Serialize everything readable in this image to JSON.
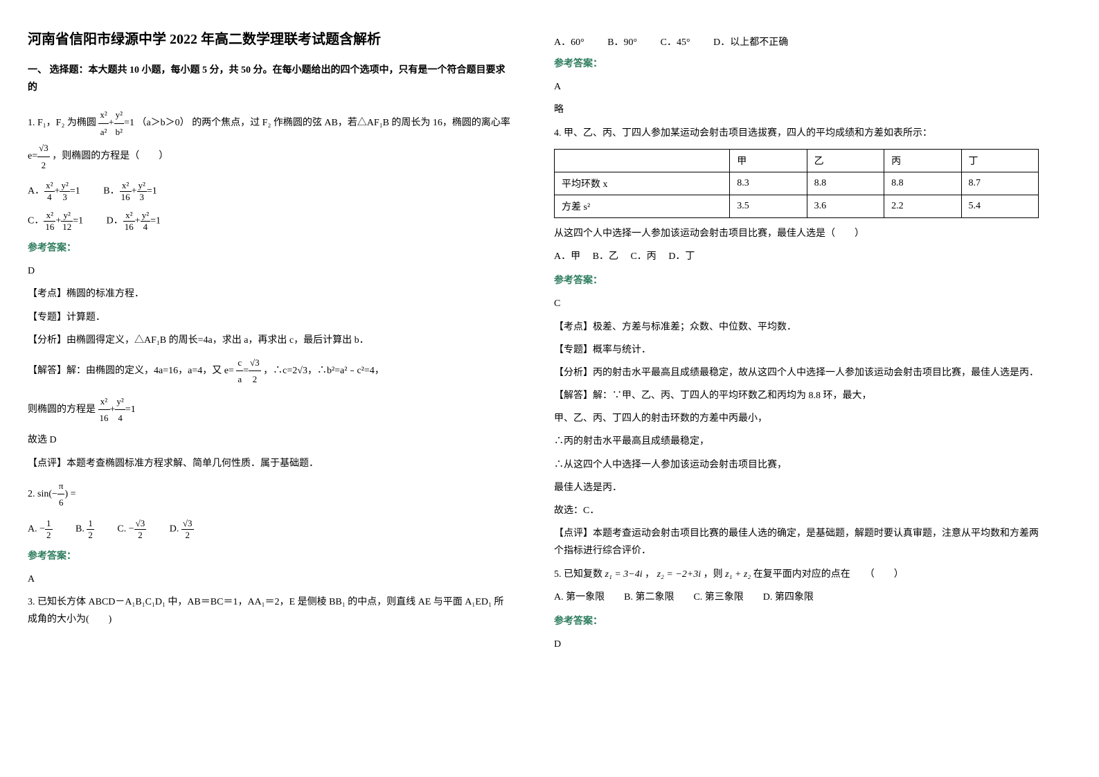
{
  "title": "河南省信阳市绿源中学 2022 年高二数学理联考试题含解析",
  "section1_title": "一、 选择题：本大题共 10 小题，每小题 5 分，共 50 分。在每小题给出的四个选项中，只有是一个符合题目要求的",
  "q1": {
    "stem_prefix": "1. F₁，F₂ 为椭圆",
    "stem_mid": "（a＞b＞0）",
    "stem_suffix": "的两个焦点，过 F₂ 作椭圆的弦 AB，若△AF₁B 的周长为 16，椭圆的离心率",
    "stem_end": "，则椭圆的方程是（　　）",
    "answer_label": "参考答案：",
    "answer": "D",
    "analysis_tag": "【考点】椭圆的标准方程．",
    "topic_tag": "【专题】计算题．",
    "analysis": "【分析】由椭圆得定义，△AF₁B 的周长=4a，求出 a，再求出 c，最后计算出 b．",
    "solve_prefix": "【解答】解：由椭圆的定义，4a=16，a=4，又 e=",
    "solve_mid": "，∴c=2√3，∴b²=a²﹣c²=4，",
    "solve_suffix": "则椭圆的方程是",
    "solve_answer": "故选 D",
    "comment": "【点评】本题考查椭圆标准方程求解、简单几何性质．属于基础题．"
  },
  "q2": {
    "stem": "2.",
    "answer_label": "参考答案：",
    "answer": "A"
  },
  "q3": {
    "stem": "3. 已知长方体 ABCD－A₁B₁C₁D₁ 中，AB＝BC＝1，AA₁＝2，E 是侧棱 BB₁ 的中点，则直线 AE 与平面 A₁ED₁ 所成角的大小为(　　)",
    "optA": "A．60°",
    "optB": "B．90°",
    "optC": "C．45°",
    "optD": "D．以上都不正确",
    "answer_label": "参考答案：",
    "answer": "A",
    "note": "略"
  },
  "q4": {
    "stem": "4. 甲、乙、丙、丁四人参加某运动会射击项目选拔赛，四人的平均成绩和方差如表所示：",
    "table": {
      "headers": [
        "",
        "甲",
        "乙",
        "丙",
        "丁"
      ],
      "row1": [
        "平均环数 x",
        "8.3",
        "8.8",
        "8.8",
        "8.7"
      ],
      "row2": [
        "方差 s²",
        "3.5",
        "3.6",
        "2.2",
        "5.4"
      ]
    },
    "post": "从这四个人中选择一人参加该运动会射击项目比赛，最佳人选是（　　）",
    "optA": "A．甲",
    "optB": "B．乙",
    "optC": "C．丙",
    "optD": "D．丁",
    "answer_label": "参考答案：",
    "answer": "C",
    "tag1": "【考点】极差、方差与标准差；众数、中位数、平均数．",
    "tag2": "【专题】概率与统计．",
    "analysis": "【分析】丙的射击水平最高且成绩最稳定，故从这四个人中选择一人参加该运动会射击项目比赛，最佳人选是丙．",
    "solve1": "【解答】解：∵甲、乙、丙、丁四人的平均环数乙和丙均为 8.8 环，最大，",
    "solve2": "甲、乙、丙、丁四人的射击环数的方差中丙最小，",
    "solve3": "∴丙的射击水平最高且成绩最稳定，",
    "solve4": "∴从这四个人中选择一人参加该运动会射击项目比赛，",
    "solve5": "最佳人选是丙．",
    "solve6": "故选：C．",
    "comment": "【点评】本题考查运动会射击项目比赛的最佳人选的确定，是基础题，解题时要认真审题，注意从平均数和方差两个指标进行综合评价．"
  },
  "q5": {
    "stem_prefix": "5. 已知复数",
    "z1": "z₁ = 3−4i",
    "comma": "，",
    "z2": "z₂ = −2+3i",
    "stem_mid": "，则",
    "expr": "z₁ + z₂",
    "stem_suffix": "在复平面内对应的点在　　（　　）",
    "options": "A. 第一象限　　B. 第二象限　　C. 第三象限　　D. 第四象限",
    "answer_label": "参考答案：",
    "answer": "D"
  }
}
